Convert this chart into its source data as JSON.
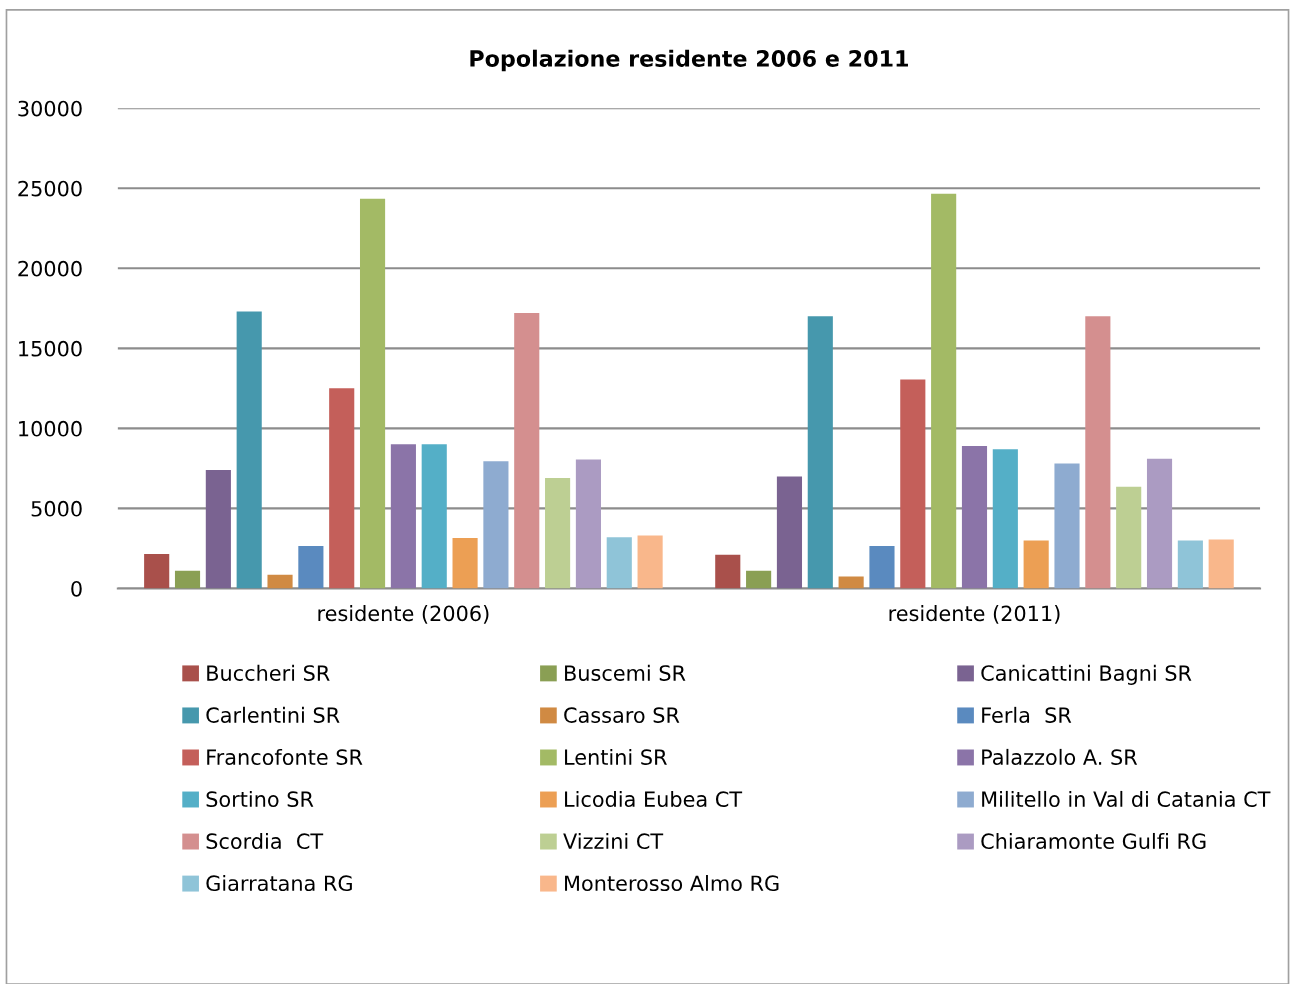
{
  "chart_data": {
    "type": "bar",
    "title": "Popolazione residente 2006 e 2011",
    "categories": [
      "residente (2006)",
      "residente (2011)"
    ],
    "series": [
      {
        "name": "Buccheri SR",
        "color": "#a9504b",
        "values": [
          2150,
          2100
        ]
      },
      {
        "name": "Buscemi SR",
        "color": "#8a9f54",
        "values": [
          1100,
          1100
        ]
      },
      {
        "name": "Canicattini Bagni SR",
        "color": "#7a6391",
        "values": [
          7400,
          7000
        ]
      },
      {
        "name": "Carlentini SR",
        "color": "#4698ad",
        "values": [
          17300,
          17000
        ]
      },
      {
        "name": "Cassaro SR",
        "color": "#d08a43",
        "values": [
          850,
          750
        ]
      },
      {
        "name": "Ferla  SR",
        "color": "#5a8abf",
        "values": [
          2650,
          2650
        ]
      },
      {
        "name": "Francofonte SR",
        "color": "#c45f5a",
        "values": [
          12500,
          13050
        ]
      },
      {
        "name": "Lentini SR",
        "color": "#a3ba65",
        "values": [
          24350,
          24650
        ]
      },
      {
        "name": "Palazzolo A. SR",
        "color": "#8b74a8",
        "values": [
          9000,
          8900
        ]
      },
      {
        "name": "Sortino SR",
        "color": "#54afc7",
        "values": [
          9000,
          8700
        ]
      },
      {
        "name": "Licodia Eubea CT",
        "color": "#ec9f54",
        "values": [
          3150,
          3000
        ]
      },
      {
        "name": "Militello in Val di Catania CT",
        "color": "#8eabd0",
        "values": [
          7950,
          7800
        ]
      },
      {
        "name": "Scordia  CT",
        "color": "#d48f8f",
        "values": [
          17200,
          17000
        ]
      },
      {
        "name": "Vizzini CT",
        "color": "#bdcf93",
        "values": [
          6900,
          6350
        ]
      },
      {
        "name": "Chiaramonte Gulfi RG",
        "color": "#ab9bc2",
        "values": [
          8050,
          8100
        ]
      },
      {
        "name": "Giarratana RG",
        "color": "#8fc4d8",
        "values": [
          3200,
          3000
        ]
      },
      {
        "name": "Monterosso Almo RG",
        "color": "#f9b78b",
        "values": [
          3300,
          3050
        ]
      }
    ],
    "ylim": [
      0,
      30000
    ],
    "yticks": [
      0,
      5000,
      10000,
      15000,
      20000,
      25000,
      30000
    ],
    "grid": "y",
    "legend": "bottom"
  }
}
